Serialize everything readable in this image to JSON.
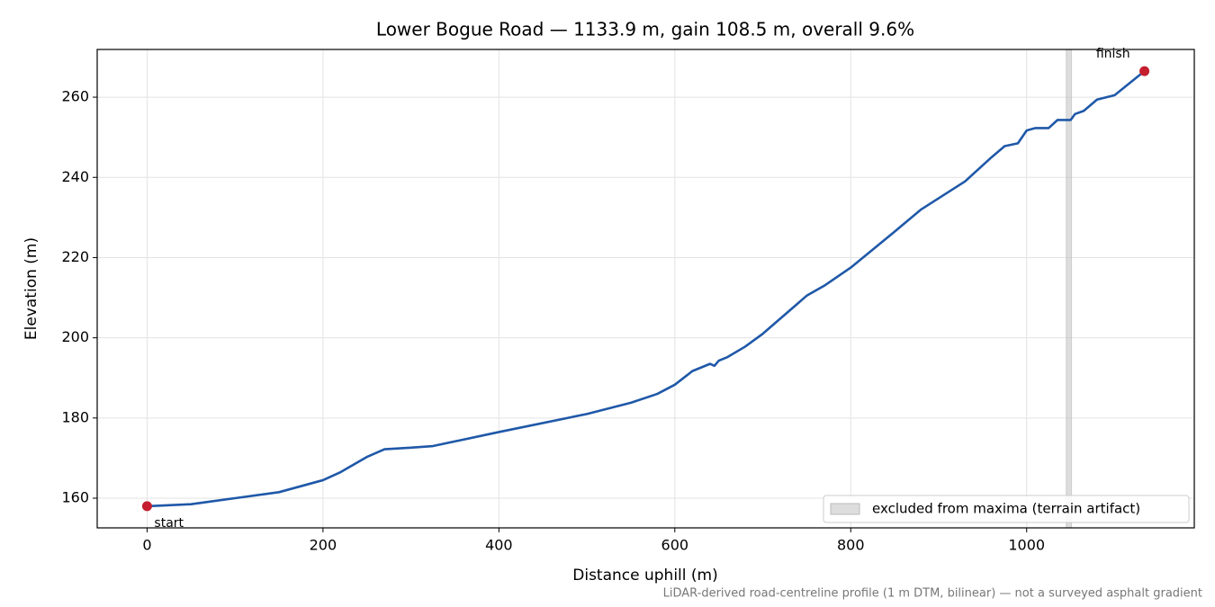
{
  "chart_data": {
    "type": "line",
    "title": "Lower Bogue Road — 1133.9 m, gain 108.5 m, overall 9.6%",
    "xlabel": "Distance uphill (m)",
    "ylabel": "Elevation (m)",
    "note": "LiDAR-derived road-centreline profile (1 m DTM, bilinear) — not a surveyed asphalt gradient",
    "x": [
      0,
      50,
      100,
      150,
      200,
      220,
      250,
      270,
      300,
      325,
      400,
      500,
      550,
      580,
      600,
      620,
      640,
      645,
      650,
      660,
      680,
      700,
      750,
      770,
      800,
      850,
      880,
      930,
      960,
      975,
      990,
      1000,
      1010,
      1025,
      1035,
      1050,
      1055,
      1065,
      1080,
      1100,
      1133.9
    ],
    "series": [
      {
        "color": "#1f58a8",
        "values": [
          158.0,
          158.5,
          160.0,
          161.5,
          164.5,
          166.5,
          170.3,
          172.2,
          172.6,
          173.0,
          176.5,
          181.0,
          183.8,
          186.0,
          188.3,
          191.7,
          193.5,
          193.0,
          194.3,
          195.2,
          197.8,
          201.0,
          210.5,
          213.0,
          217.5,
          226.5,
          232.0,
          239.0,
          245.0,
          247.8,
          248.5,
          251.7,
          252.3,
          252.3,
          254.3,
          254.3,
          255.8,
          256.6,
          259.4,
          260.5,
          266.5
        ]
      }
    ],
    "annotations": [
      {
        "text": "start",
        "x": 0,
        "y": 158.0,
        "color": "#c41e2f"
      },
      {
        "text": "finish",
        "x": 1133.9,
        "y": 266.5,
        "color": "#c41e2f"
      }
    ],
    "band": {
      "label": "excluded from maxima (terrain artifact)",
      "x0": 1045,
      "x1": 1051,
      "color": "#bbbbbb"
    },
    "xlim": [
      -56.7,
      1190.6
    ],
    "ylim": [
      152.6,
      271.9
    ],
    "xticks": [
      0,
      200,
      400,
      600,
      800,
      1000
    ],
    "yticks": [
      160,
      180,
      200,
      220,
      240,
      260
    ],
    "grid": true,
    "legend": "lower right"
  }
}
